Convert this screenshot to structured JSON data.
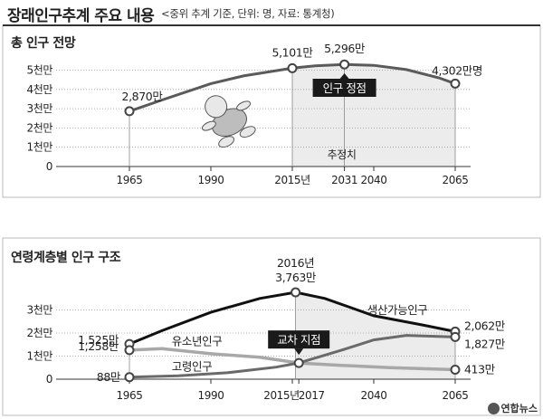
{
  "header": {
    "title": "장래인구추계 주요 내용",
    "subtitle": "<중위 추계 기준, 단위: 명, 자료: 통계청)"
  },
  "credit": "연합뉴스",
  "chart_data": [
    {
      "type": "line",
      "title": "총 인구 전망",
      "yticks": [
        "0",
        "1천만",
        "2천만",
        "3천만",
        "4천만",
        "5천만"
      ],
      "ylim": [
        0,
        5500
      ],
      "xticks": [
        "1965",
        "1990",
        "2015년",
        "2031",
        "2040",
        "2065"
      ],
      "series": [
        {
          "points": [
            [
              1965,
              2870
            ],
            [
              1975,
              3450
            ],
            [
              1990,
              4300
            ],
            [
              2000,
              4700
            ],
            [
              2015,
              5101
            ],
            [
              2022,
              5220
            ],
            [
              2031,
              5296
            ],
            [
              2040,
              5250
            ],
            [
              2050,
              5030
            ],
            [
              2060,
              4600
            ],
            [
              2065,
              4302
            ]
          ]
        }
      ],
      "markers": [
        {
          "x": 1965,
          "y": 2870,
          "label": "2,870만"
        },
        {
          "x": 2015,
          "y": 5101,
          "label": "5,101만"
        },
        {
          "x": 2031,
          "y": 5296,
          "label": "5,296만"
        },
        {
          "x": 2065,
          "y": 4302,
          "label": "4,302만명"
        }
      ],
      "annotations": {
        "peak": "인구 정점",
        "projection": "추정치"
      },
      "shaded_from": 2015,
      "grid": true
    },
    {
      "type": "line",
      "title": "연령계층별 인구 구조",
      "yticks": [
        "0",
        "1천만",
        "2천만",
        "3천만"
      ],
      "ylim": [
        0,
        3700
      ],
      "xticks": [
        "1965",
        "1990",
        "2015년",
        "2017",
        "2040",
        "2065"
      ],
      "series": [
        {
          "name": "생산가능인구",
          "color": "#111111",
          "points": [
            [
              1965,
              1525
            ],
            [
              1975,
              2100
            ],
            [
              1990,
              2900
            ],
            [
              2005,
              3500
            ],
            [
              2016,
              3763
            ],
            [
              2025,
              3500
            ],
            [
              2040,
              2750
            ],
            [
              2055,
              2350
            ],
            [
              2065,
              2062
            ]
          ]
        },
        {
          "name": "유소년인구",
          "color": "#a8a8a8",
          "points": [
            [
              1965,
              1258
            ],
            [
              1975,
              1320
            ],
            [
              1990,
              1100
            ],
            [
              2005,
              950
            ],
            [
              2017,
              700
            ],
            [
              2030,
              600
            ],
            [
              2045,
              500
            ],
            [
              2065,
              413
            ]
          ]
        },
        {
          "name": "고령인구",
          "color": "#6a6a6a",
          "points": [
            [
              1965,
              88
            ],
            [
              1980,
              150
            ],
            [
              1995,
              280
            ],
            [
              2010,
              520
            ],
            [
              2017,
              700
            ],
            [
              2030,
              1250
            ],
            [
              2040,
              1700
            ],
            [
              2050,
              1900
            ],
            [
              2065,
              1827
            ]
          ]
        }
      ],
      "markers": [
        {
          "x": 1965,
          "y": 1525,
          "label": "1,525만"
        },
        {
          "x": 1965,
          "y": 1258,
          "label": "1,258만"
        },
        {
          "x": 1965,
          "y": 88,
          "label": "88만"
        },
        {
          "x": 2016,
          "y": 3763,
          "label_year": "2016년",
          "label": "3,763만"
        },
        {
          "x": 2065,
          "y": 2062,
          "label": "2,062만"
        },
        {
          "x": 2065,
          "y": 1827,
          "label": "1,827만"
        },
        {
          "x": 2065,
          "y": 413,
          "label": "413만"
        }
      ],
      "annotations": {
        "cross": "교차 지점"
      },
      "cross_point": {
        "x": 2017,
        "y": 700
      },
      "shaded_from": 2016,
      "grid": true
    }
  ]
}
